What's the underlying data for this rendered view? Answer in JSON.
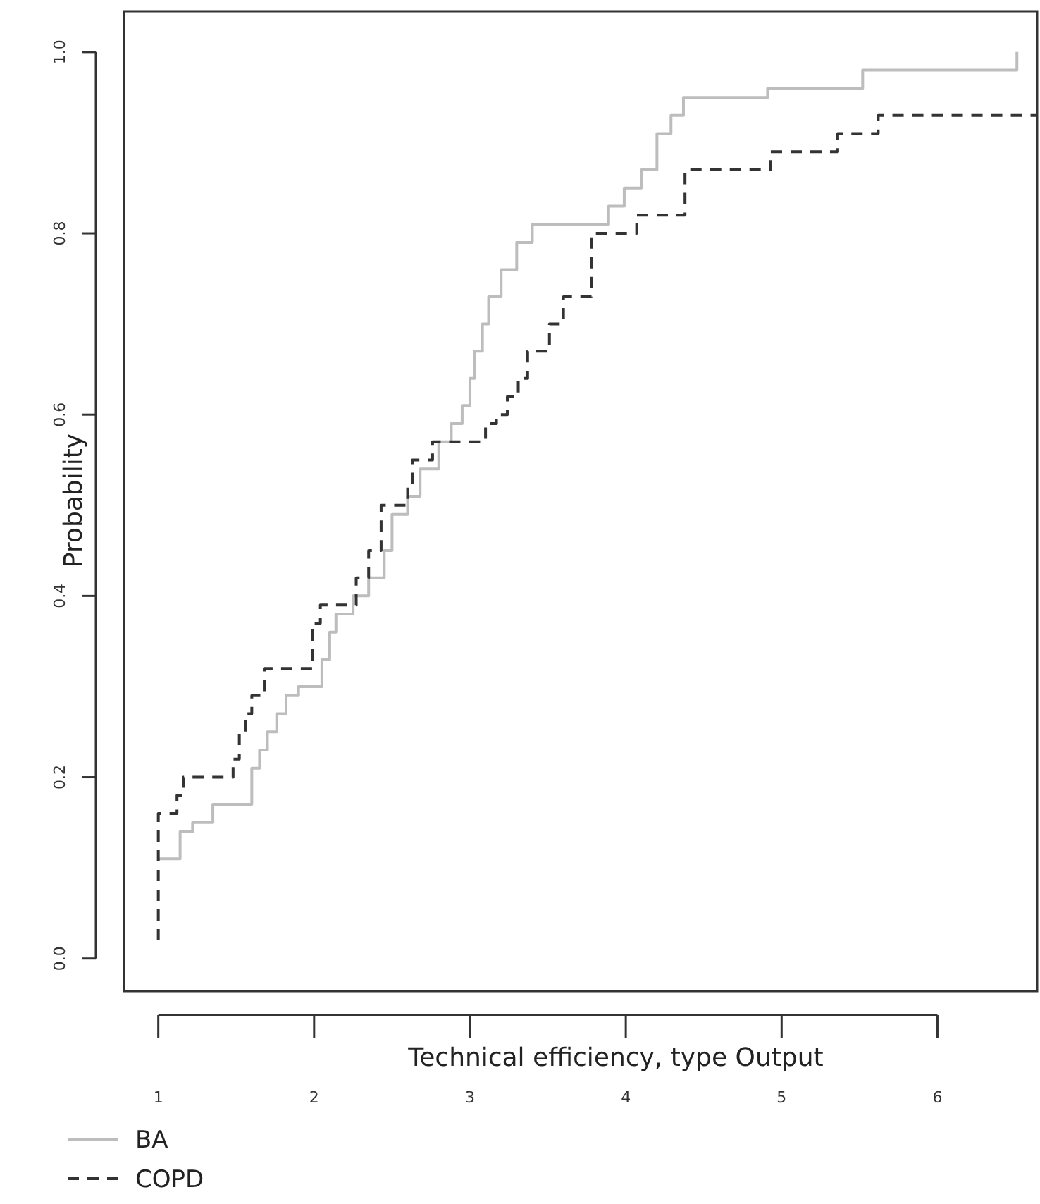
{
  "chart_data": {
    "type": "step",
    "xlabel": "Technical efficiency, type Output",
    "ylabel": "Probability",
    "xlim": [
      0.78,
      6.64
    ],
    "ylim": [
      -0.036,
      1.045
    ],
    "xticks": [
      1,
      2,
      3,
      4,
      5,
      6
    ],
    "yticks": [
      {
        "value": 0,
        "label": "0.0"
      },
      {
        "value": 0.2,
        "label": "0.2"
      },
      {
        "value": 0.4,
        "label": "0.4"
      },
      {
        "value": 0.6,
        "label": "0.6"
      },
      {
        "value": 0.8,
        "label": "0.8"
      },
      {
        "value": 1,
        "label": "1.0"
      }
    ],
    "grid": false,
    "legend": "bottom left",
    "series": [
      {
        "name": "BA",
        "color": "#bdbdbd",
        "line_style": "solid",
        "x": [
          1,
          1.14,
          1.22,
          1.35,
          1.6,
          1.65,
          1.7,
          1.76,
          1.82,
          1.9,
          2.05,
          2.1,
          2.14,
          2.25,
          2.35,
          2.45,
          2.5,
          2.6,
          2.68,
          2.8,
          2.88,
          2.95,
          3,
          3.03,
          3.08,
          3.12,
          3.2,
          3.3,
          3.4,
          3.89,
          3.99,
          4.1,
          4.2,
          4.29,
          4.37,
          4.91,
          5.52,
          6.51,
          6.51
        ],
        "values": [
          0.11,
          0.14,
          0.15,
          0.17,
          0.21,
          0.23,
          0.25,
          0.27,
          0.29,
          0.3,
          0.33,
          0.36,
          0.38,
          0.4,
          0.42,
          0.45,
          0.49,
          0.51,
          0.54,
          0.57,
          0.59,
          0.61,
          0.64,
          0.67,
          0.7,
          0.73,
          0.76,
          0.79,
          0.81,
          0.83,
          0.85,
          0.87,
          0.91,
          0.93,
          0.95,
          0.96,
          0.98,
          0.98,
          1
        ]
      },
      {
        "name": "COPD",
        "color": "#333333",
        "line_style": "dashed",
        "x": [
          1,
          1,
          1.09,
          1.12,
          1.16,
          1.48,
          1.52,
          1.56,
          1.6,
          1.68,
          1.99,
          2.04,
          2.27,
          2.35,
          2.43,
          2.53,
          2.6,
          2.63,
          2.76,
          3.1,
          3.17,
          3.24,
          3.31,
          3.37,
          3.51,
          3.6,
          3.72,
          3.78,
          4.07,
          4.38,
          4.93,
          5.36,
          5.62,
          6.64
        ],
        "values": [
          0.02,
          0.16,
          0.16,
          0.18,
          0.2,
          0.22,
          0.25,
          0.27,
          0.29,
          0.32,
          0.37,
          0.39,
          0.42,
          0.45,
          0.5,
          0.5,
          0.52,
          0.55,
          0.57,
          0.59,
          0.6,
          0.62,
          0.64,
          0.67,
          0.7,
          0.73,
          0.73,
          0.8,
          0.82,
          0.87,
          0.89,
          0.91,
          0.93,
          0.93
        ]
      }
    ]
  }
}
